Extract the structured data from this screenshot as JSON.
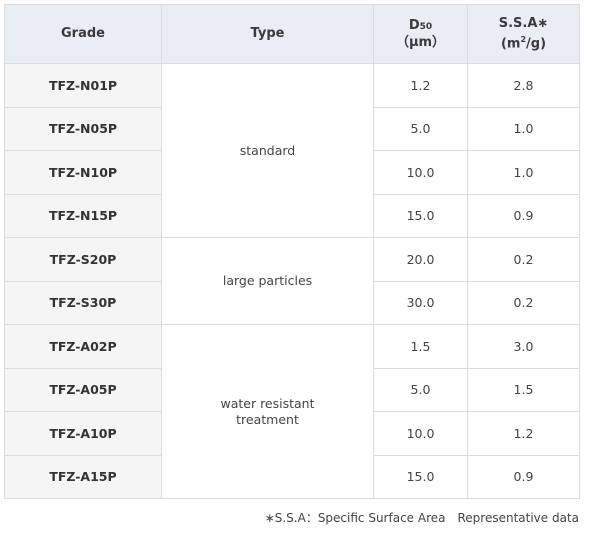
{
  "table": {
    "headers": {
      "grade": "Grade",
      "type": "Type",
      "d50_main": "D",
      "d50_sub": "50",
      "d50_unit": "（μm）",
      "ssa_main": "S.S.A∗",
      "ssa_unit_pre": "(m",
      "ssa_unit_sup": "2",
      "ssa_unit_post": "/g)"
    },
    "rows": [
      {
        "grade": "TFZ-N01P",
        "type": "standard",
        "d50": "1.2",
        "ssa": "2.8"
      },
      {
        "grade": "TFZ-N05P",
        "type": "standard",
        "d50": "5.0",
        "ssa": "1.0"
      },
      {
        "grade": "TFZ-N10P",
        "type": "standard",
        "d50": "10.0",
        "ssa": "1.0"
      },
      {
        "grade": "TFZ-N15P",
        "type": "standard",
        "d50": "15.0",
        "ssa": "0.9"
      },
      {
        "grade": "TFZ-S20P",
        "type": "large particles",
        "d50": "20.0",
        "ssa": "0.2"
      },
      {
        "grade": "TFZ-S30P",
        "type": "large particles",
        "d50": "30.0",
        "ssa": "0.2"
      },
      {
        "grade": "TFZ-A02P",
        "type": "water resistant\ntreatment",
        "d50": "1.5",
        "ssa": "3.0"
      },
      {
        "grade": "TFZ-A05P",
        "type": "water resistant\ntreatment",
        "d50": "5.0",
        "ssa": "1.5"
      },
      {
        "grade": "TFZ-A10P",
        "type": "water resistant\ntreatment",
        "d50": "10.0",
        "ssa": "1.2"
      },
      {
        "grade": "TFZ-A15P",
        "type": "water resistant\ntreatment",
        "d50": "15.0",
        "ssa": "0.9"
      }
    ]
  },
  "footnote": "∗S.S.A：Specific Surface Area　Representative data"
}
